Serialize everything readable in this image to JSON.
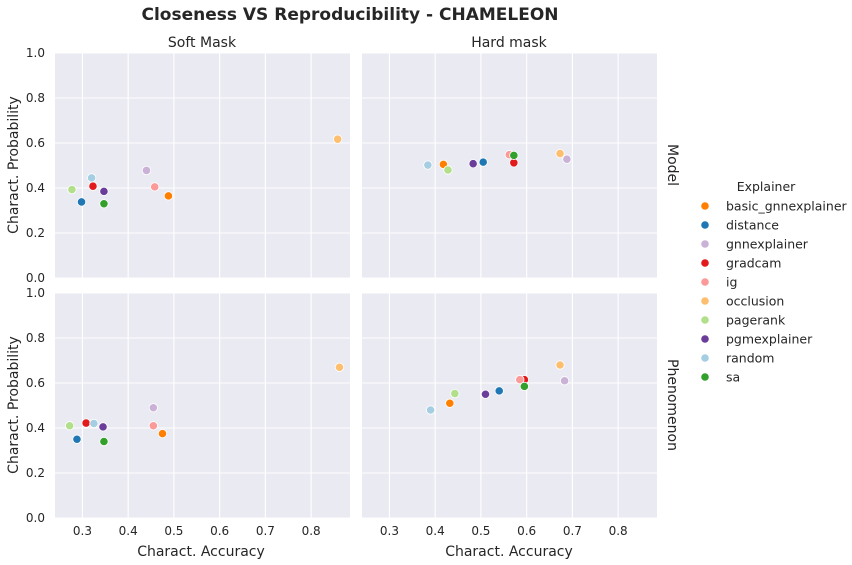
{
  "chart_data": {
    "type": "scatter",
    "title": "Closeness VS Reproducibility - CHAMELEON",
    "xlabel": "Charact. Accuracy",
    "ylabel": "Charact. Probability",
    "xlim": [
      0.24,
      0.885
    ],
    "ylim": [
      0.0,
      1.0
    ],
    "xticks": [
      0.3,
      0.4,
      0.5,
      0.6,
      0.7,
      0.8
    ],
    "yticks": [
      0.0,
      0.2,
      0.4,
      0.6,
      0.8,
      1.0
    ],
    "xtick_labels": [
      "0.3",
      "0.4",
      "0.5",
      "0.6",
      "0.7",
      "0.8"
    ],
    "ytick_labels": [
      "0.0",
      "0.2",
      "0.4",
      "0.6",
      "0.8",
      "1.0"
    ],
    "columns": [
      "Soft Mask",
      "Hard mask"
    ],
    "rows": [
      "Model",
      "Phenomenon"
    ],
    "grid": true,
    "legend": {
      "title": "Explainer",
      "placement": "right",
      "entries": [
        {
          "name": "basic_gnnexplainer",
          "color": "#ff7f00"
        },
        {
          "name": "distance",
          "color": "#1f78b4"
        },
        {
          "name": "gnnexplainer",
          "color": "#cab2d6"
        },
        {
          "name": "gradcam",
          "color": "#e31a1c"
        },
        {
          "name": "ig",
          "color": "#fb9a99"
        },
        {
          "name": "occlusion",
          "color": "#fdbf6f"
        },
        {
          "name": "pagerank",
          "color": "#b2df8a"
        },
        {
          "name": "pgmexplainer",
          "color": "#6a3d9a"
        },
        {
          "name": "random",
          "color": "#a6cee3"
        },
        {
          "name": "sa",
          "color": "#33a02c"
        }
      ]
    },
    "panels": [
      {
        "row": "Model",
        "col": "Soft Mask",
        "points": [
          {
            "explainer": "basic_gnnexplainer",
            "x": 0.488,
            "y": 0.365
          },
          {
            "explainer": "distance",
            "x": 0.298,
            "y": 0.338
          },
          {
            "explainer": "gnnexplainer",
            "x": 0.44,
            "y": 0.478
          },
          {
            "explainer": "gradcam",
            "x": 0.323,
            "y": 0.408
          },
          {
            "explainer": "ig",
            "x": 0.458,
            "y": 0.405
          },
          {
            "explainer": "occlusion",
            "x": 0.858,
            "y": 0.617
          },
          {
            "explainer": "pagerank",
            "x": 0.277,
            "y": 0.393
          },
          {
            "explainer": "pgmexplainer",
            "x": 0.347,
            "y": 0.385
          },
          {
            "explainer": "random",
            "x": 0.32,
            "y": 0.445
          },
          {
            "explainer": "sa",
            "x": 0.347,
            "y": 0.33
          }
        ]
      },
      {
        "row": "Model",
        "col": "Hard mask",
        "points": [
          {
            "explainer": "basic_gnnexplainer",
            "x": 0.418,
            "y": 0.505
          },
          {
            "explainer": "distance",
            "x": 0.505,
            "y": 0.515
          },
          {
            "explainer": "gnnexplainer",
            "x": 0.688,
            "y": 0.528
          },
          {
            "explainer": "gradcam",
            "x": 0.572,
            "y": 0.512
          },
          {
            "explainer": "ig",
            "x": 0.562,
            "y": 0.548
          },
          {
            "explainer": "occlusion",
            "x": 0.673,
            "y": 0.553
          },
          {
            "explainer": "pagerank",
            "x": 0.428,
            "y": 0.48
          },
          {
            "explainer": "pgmexplainer",
            "x": 0.483,
            "y": 0.508
          },
          {
            "explainer": "random",
            "x": 0.384,
            "y": 0.502
          },
          {
            "explainer": "sa",
            "x": 0.572,
            "y": 0.545
          }
        ]
      },
      {
        "row": "Phenomenon",
        "col": "Soft Mask",
        "points": [
          {
            "explainer": "basic_gnnexplainer",
            "x": 0.475,
            "y": 0.375
          },
          {
            "explainer": "distance",
            "x": 0.288,
            "y": 0.35
          },
          {
            "explainer": "gnnexplainer",
            "x": 0.455,
            "y": 0.49
          },
          {
            "explainer": "gradcam",
            "x": 0.308,
            "y": 0.422
          },
          {
            "explainer": "ig",
            "x": 0.455,
            "y": 0.41
          },
          {
            "explainer": "occlusion",
            "x": 0.862,
            "y": 0.67
          },
          {
            "explainer": "pagerank",
            "x": 0.272,
            "y": 0.41
          },
          {
            "explainer": "pgmexplainer",
            "x": 0.345,
            "y": 0.405
          },
          {
            "explainer": "random",
            "x": 0.325,
            "y": 0.42
          },
          {
            "explainer": "sa",
            "x": 0.347,
            "y": 0.34
          }
        ]
      },
      {
        "row": "Phenomenon",
        "col": "Hard mask",
        "points": [
          {
            "explainer": "basic_gnnexplainer",
            "x": 0.432,
            "y": 0.51
          },
          {
            "explainer": "distance",
            "x": 0.54,
            "y": 0.565
          },
          {
            "explainer": "gnnexplainer",
            "x": 0.683,
            "y": 0.61
          },
          {
            "explainer": "gradcam",
            "x": 0.595,
            "y": 0.615
          },
          {
            "explainer": "ig",
            "x": 0.585,
            "y": 0.615
          },
          {
            "explainer": "occlusion",
            "x": 0.673,
            "y": 0.68
          },
          {
            "explainer": "pagerank",
            "x": 0.443,
            "y": 0.553
          },
          {
            "explainer": "pgmexplainer",
            "x": 0.51,
            "y": 0.55
          },
          {
            "explainer": "random",
            "x": 0.39,
            "y": 0.48
          },
          {
            "explainer": "sa",
            "x": 0.595,
            "y": 0.585
          }
        ]
      }
    ]
  }
}
